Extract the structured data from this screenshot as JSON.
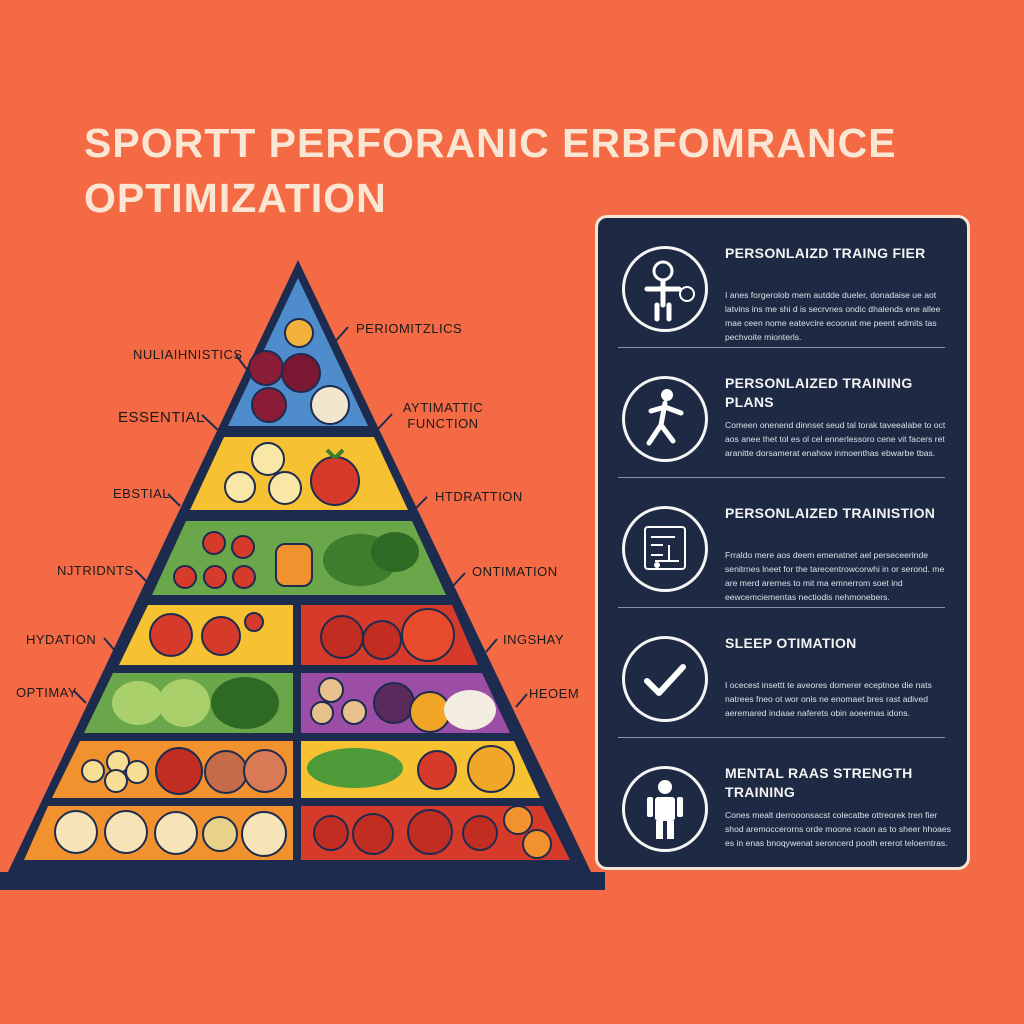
{
  "title": {
    "line1": "SPORTT PERFORANIC ERBFOMRANCE",
    "line2": "OPTIMIZATION"
  },
  "colors": {
    "background": "#f46a45",
    "panel": "#1e2a43",
    "title": "#fbe6d3",
    "outline": "#1d2b4f"
  },
  "pyramid": {
    "left_labels": [
      "NULIAIHNISTICS",
      "ESSENTIAL",
      "EBSTIAL",
      "NJTRIDNTS",
      "HYDATION",
      "OPTIMAY"
    ],
    "right_labels": [
      "PERIOMITZLICS",
      "AYTIMATTIC FUNCTION",
      "HTDRATTION",
      "ONTIMATION",
      "INGSHAY",
      "HEOEM"
    ]
  },
  "panel": {
    "items": [
      {
        "icon": "person-coach-icon",
        "title": "PERSONLAIZD TRAING FIER",
        "body": "I anes forgerolob mem autdde dueler, donadaise ue aot latvins ins me shi d is secrvnes ondic dhalends ene allee mae ceen nome eatevcire ecoonat me peent edmits tas pechvoite mionterls."
      },
      {
        "icon": "running-person-icon",
        "title": "PERSONLAIZED TRAINING PLANS",
        "body": "Comeen onenend dinnset seud tal torak taveealabe to oct aos anee thet tol es ol cel ennerlessoro cene vit facers ret aranitte dorsamerat enahow inmoenthas ebwarbe tbas."
      },
      {
        "icon": "circuit-board-icon",
        "title": "PERSONLAIZED TRAINISTION",
        "body": "Frraldo mere aos deem emenatnet ael perseceerinde senitrnes lneet for the tarecentrowcorwhi in or serond. me are merd arernes to mit ma emnerrom soet ind eewcemciementas nectiodis nehmonebers."
      },
      {
        "icon": "checkmark-icon",
        "title": "SLEEP OTIMATION",
        "body": "I ocecest insettt te aveores domerer eceptnoe die nats natrees fneo ot wor onis ne enomaet bres rast adived aeremared indaae naferets obin aoeemas idons."
      },
      {
        "icon": "standing-person-icon",
        "title": "MENTAL RAAS STRENGTH TRAINING",
        "body": "Cones mealt derrooonsacst colecatbe ottreorek tren fier shod aremoccerorns orde moone rcaon as to sheer hhoaes es in enas bnoqywenat seroncerd pooth ererot teloerntras."
      }
    ]
  }
}
